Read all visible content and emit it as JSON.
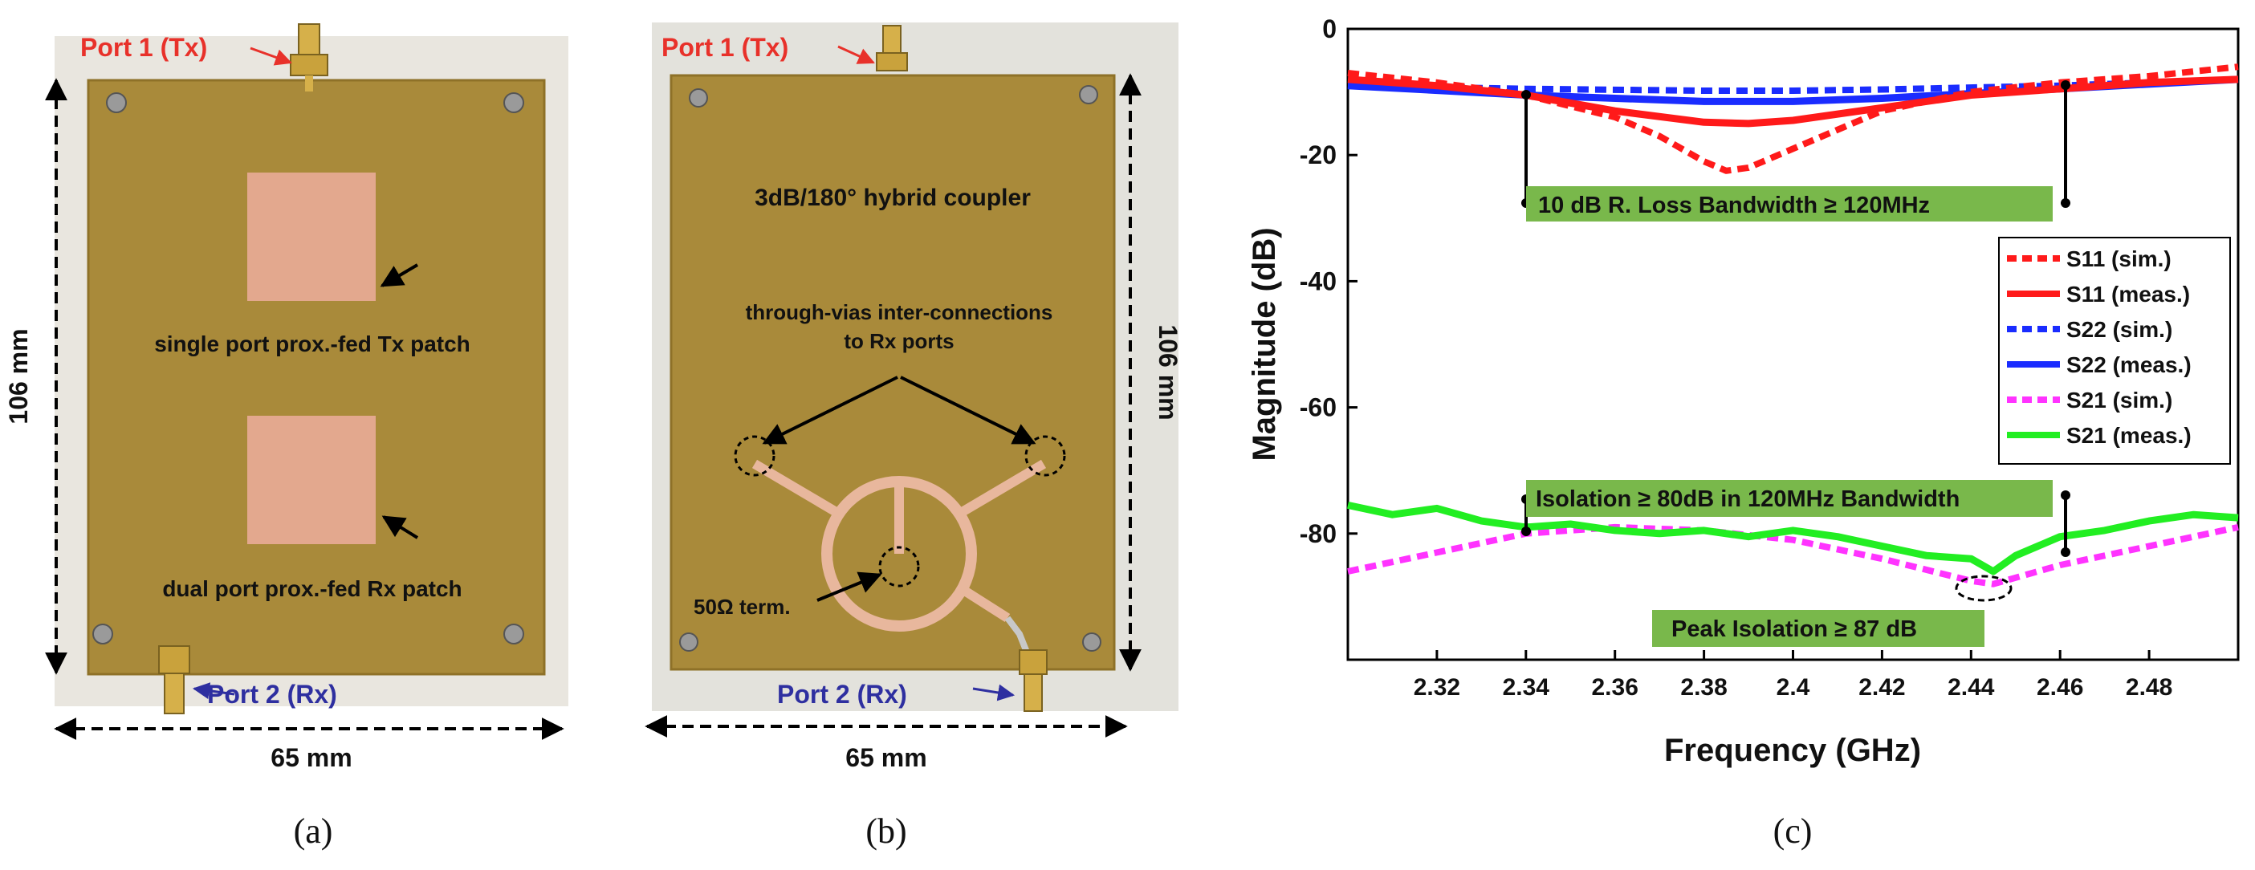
{
  "panel_a": {
    "port1": "Port 1 (Tx)",
    "port2": "Port 2 (Rx)",
    "height_dim": "106 mm",
    "width_dim": "65 mm",
    "tx_label": "single port prox.-fed Tx patch",
    "rx_label": "dual port prox.-fed Rx patch",
    "caption": "(a)"
  },
  "panel_b": {
    "port1": "Port 1 (Tx)",
    "port2": "Port 2 (Rx)",
    "title": "3dB/180° hybrid coupler",
    "vias_line1": "through-vias inter-connections",
    "vias_line2": "to Rx ports",
    "term_label": "50Ω  term.",
    "height_dim": "106 mm",
    "width_dim": "65 mm",
    "caption": "(b)"
  },
  "panel_c": {
    "caption": "(c)"
  },
  "colors": {
    "board": "#a98a3a",
    "board_edge": "#8e7128",
    "patch": "#e3a88e",
    "port_label_tx": "#e8312a",
    "port_label_rx": "#2e2fa0",
    "annot_box": "#79b84b",
    "s11": "#ff1a1a",
    "s22": "#1a2cff",
    "s21_sim": "#ff33ff",
    "s21_meas": "#22ee22"
  },
  "chart_data": {
    "type": "line",
    "xlabel": "Frequency (GHz)",
    "ylabel": "Magnitude (dB)",
    "xlim": [
      2.3,
      2.5
    ],
    "ylim": [
      -100,
      0
    ],
    "xticks": [
      2.32,
      2.34,
      2.36,
      2.38,
      2.4,
      2.42,
      2.44,
      2.46,
      2.48
    ],
    "xtick_labels": [
      "2.32",
      "2.34",
      "2.36",
      "2.38",
      "2.4",
      "2.42",
      "2.44",
      "2.46",
      "2.48"
    ],
    "yticks": [
      0,
      -20,
      -40,
      -60,
      -80
    ],
    "ytick_labels": [
      "0",
      "-20",
      "-40",
      "-60",
      "-80"
    ],
    "grid": false,
    "legend_position": "right",
    "series": [
      {
        "name": "S11 (sim.)",
        "style": "dashed",
        "color": "#ff1a1a",
        "x": [
          2.3,
          2.32,
          2.34,
          2.36,
          2.37,
          2.38,
          2.385,
          2.39,
          2.4,
          2.42,
          2.44,
          2.46,
          2.48,
          2.5
        ],
        "y": [
          -7,
          -8.5,
          -10.5,
          -14,
          -17,
          -21,
          -22.5,
          -22,
          -19,
          -13,
          -10,
          -8.5,
          -7.5,
          -6
        ]
      },
      {
        "name": "S11 (meas.)",
        "style": "solid",
        "color": "#ff1a1a",
        "x": [
          2.3,
          2.32,
          2.34,
          2.36,
          2.38,
          2.39,
          2.4,
          2.42,
          2.44,
          2.46,
          2.48,
          2.5
        ],
        "y": [
          -8,
          -9,
          -10.5,
          -13,
          -14.8,
          -15,
          -14.5,
          -12.5,
          -10.5,
          -9.5,
          -8.5,
          -8
        ]
      },
      {
        "name": "S22 (sim.)",
        "style": "dashed",
        "color": "#1a2cff",
        "x": [
          2.3,
          2.34,
          2.38,
          2.4,
          2.42,
          2.46,
          2.5
        ],
        "y": [
          -9,
          -9.5,
          -9.8,
          -9.8,
          -9.6,
          -9,
          -8
        ]
      },
      {
        "name": "S22 (meas.)",
        "style": "solid",
        "color": "#1a2cff",
        "x": [
          2.3,
          2.34,
          2.38,
          2.4,
          2.42,
          2.46,
          2.5
        ],
        "y": [
          -9,
          -10.5,
          -11.5,
          -11.5,
          -11,
          -9.5,
          -8
        ]
      },
      {
        "name": "S21 (sim.)",
        "style": "dashed",
        "color": "#ff33ff",
        "x": [
          2.3,
          2.32,
          2.34,
          2.36,
          2.38,
          2.4,
          2.42,
          2.44,
          2.445,
          2.45,
          2.46,
          2.48,
          2.5
        ],
        "y": [
          -86,
          -83,
          -80,
          -79,
          -79.5,
          -81,
          -84,
          -87.5,
          -88,
          -87,
          -85,
          -82,
          -79
        ]
      },
      {
        "name": "S21 (meas.)",
        "style": "solid",
        "color": "#22ee22",
        "x": [
          2.3,
          2.31,
          2.32,
          2.33,
          2.34,
          2.35,
          2.36,
          2.37,
          2.38,
          2.39,
          2.4,
          2.41,
          2.42,
          2.43,
          2.44,
          2.445,
          2.45,
          2.46,
          2.47,
          2.48,
          2.49,
          2.5
        ],
        "y": [
          -75.5,
          -77,
          -76,
          -78,
          -79,
          -78.5,
          -79.5,
          -80,
          -79.5,
          -80.5,
          -79.5,
          -80.5,
          -82,
          -83.5,
          -84,
          -86,
          -83.5,
          -80.5,
          -79.5,
          -78,
          -77,
          -77.5
        ]
      }
    ],
    "annotations": [
      {
        "text": "10 dB R. Loss Bandwidth  ≥  120MHz"
      },
      {
        "text": "Isolation ≥ 80dB in 120MHz Bandwidth"
      },
      {
        "text": "Peak Isolation  ≥ 87 dB"
      }
    ]
  }
}
